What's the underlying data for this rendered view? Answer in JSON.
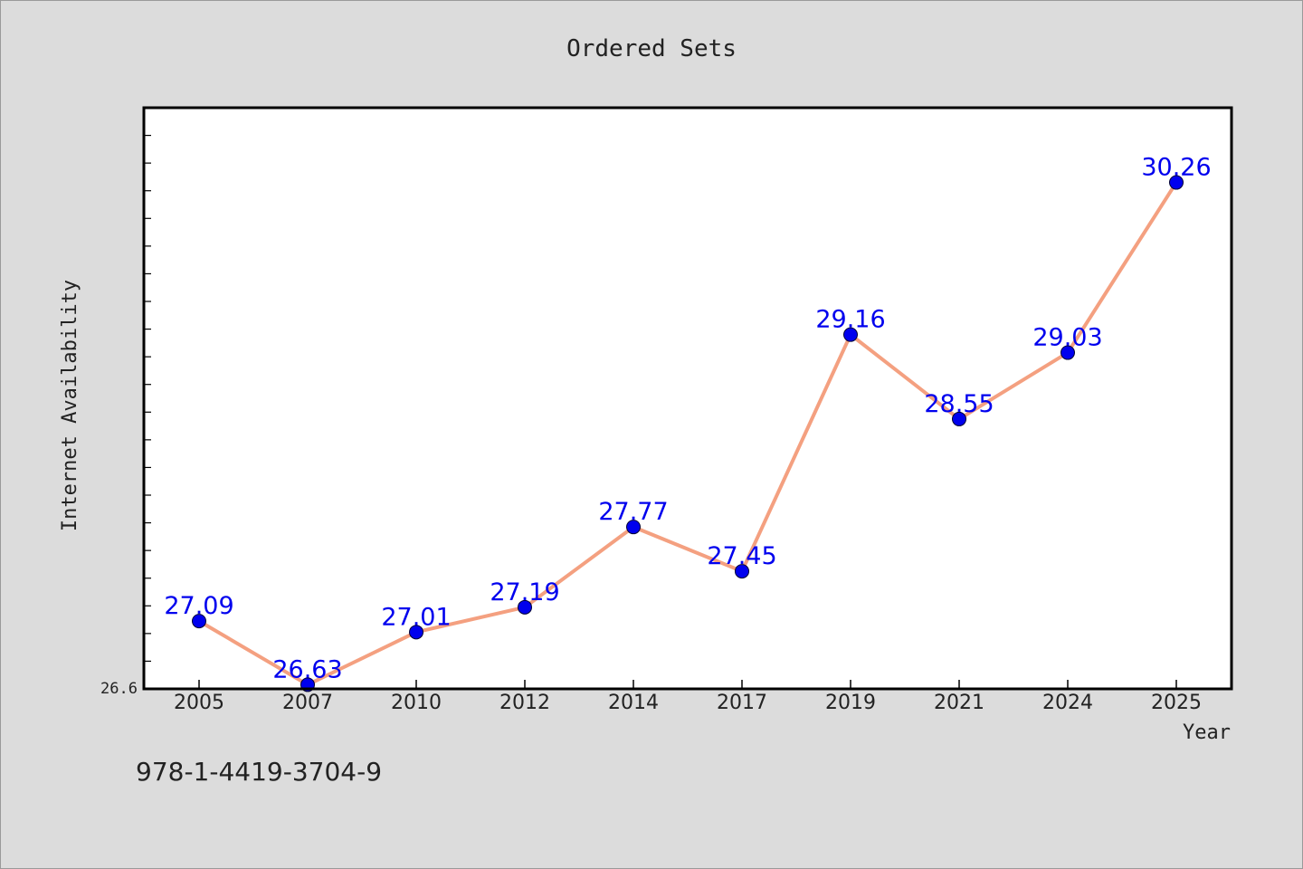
{
  "chart_data": {
    "type": "line",
    "title": "Ordered Sets",
    "xlabel": "Year",
    "ylabel": "Internet Availability",
    "categories": [
      "2005",
      "2007",
      "2010",
      "2012",
      "2014",
      "2017",
      "2019",
      "2021",
      "2024",
      "2025"
    ],
    "series": [
      {
        "values": [
          27.09,
          26.63,
          27.01,
          27.19,
          27.77,
          27.45,
          29.16,
          28.55,
          29.03,
          30.26
        ]
      }
    ],
    "ylim": [
      26.6,
      30.8
    ],
    "y_tick_labels": [
      "26.6"
    ],
    "grid": false,
    "data_labels": true,
    "colors": {
      "background": "#dcdcdc",
      "plot_background": "#ffffff",
      "line": "#f4a080",
      "marker": "#0000ee",
      "data_label": "#0000ee",
      "axis": "#000000"
    }
  },
  "footer_text": "978-1-4419-3704-9"
}
